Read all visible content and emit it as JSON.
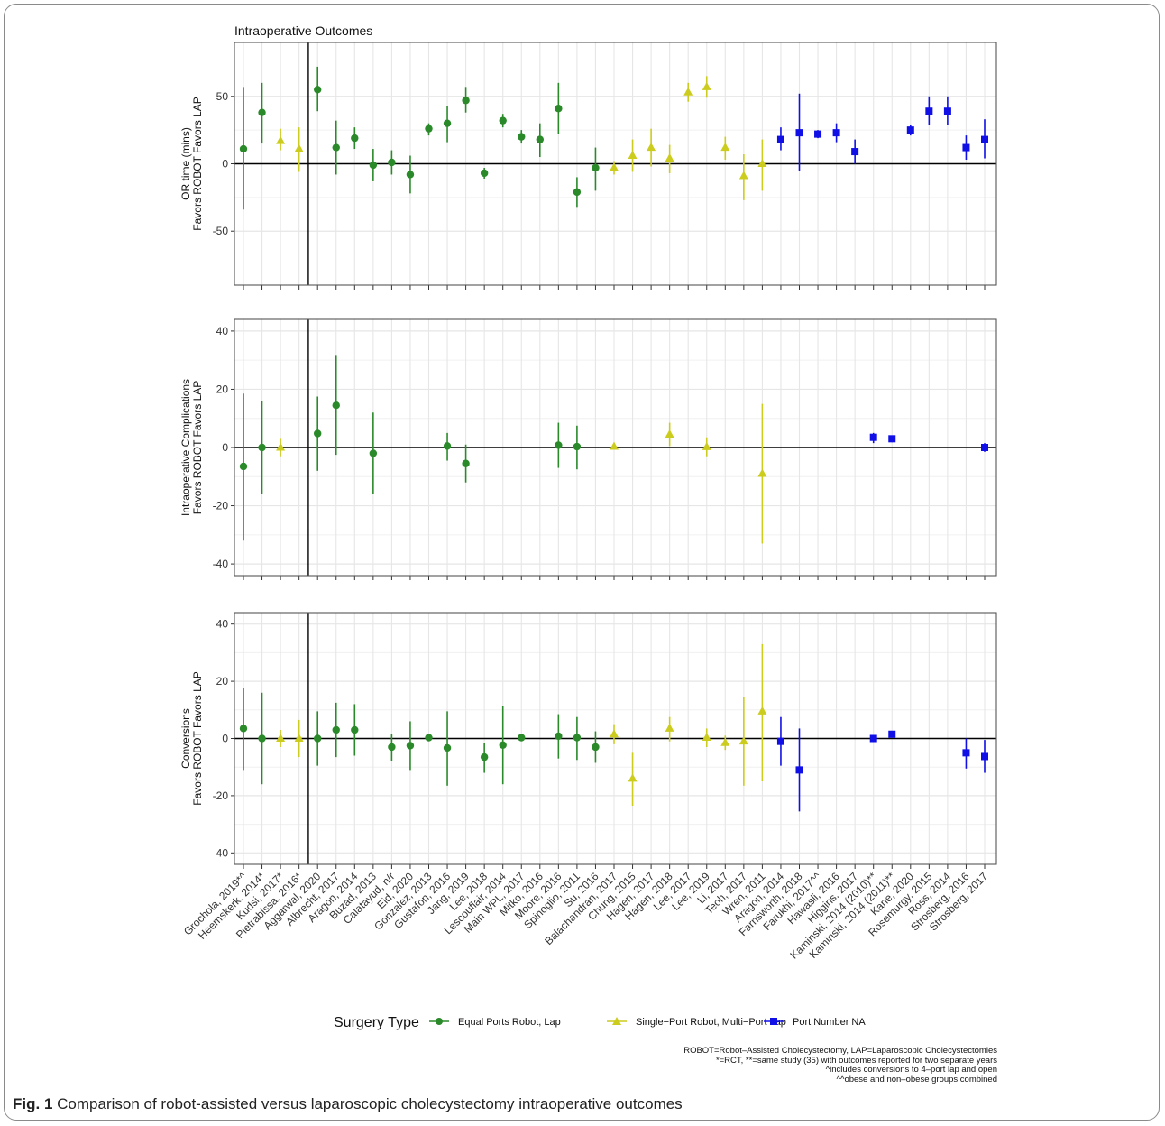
{
  "figure": {
    "caption_label": "Fig. 1",
    "caption_text": "Comparison of robot-assisted versus laparoscopic cholecystectomy intraoperative outcomes",
    "notes": [
      "ROBOT=Robot–Assisted Cholecystectomy, LAP=Laparoscopic Cholecystectomies",
      "*=RCT, **=same study (35) with outcomes reported for two separate years",
      "^includes conversions to 4–port lap and open",
      "^^obese and non–obese groups combined"
    ]
  },
  "colors": {
    "equal": "#2a8a2a",
    "single": "#cccc1e",
    "na": "#1010e6",
    "zero_line": "#000000",
    "grid": "#e6e6e6",
    "panel_border": "#555555"
  },
  "chart_data": {
    "type": "scatter",
    "title": "Intraoperative Outcomes",
    "legend": {
      "title": "Surgery Type",
      "position": "bottom",
      "entries": [
        {
          "label": "Equal Ports Robot, Lap",
          "group": "equal",
          "shape": "circle"
        },
        {
          "label": "Single−Port Robot, Multi−Port Lap",
          "group": "single",
          "shape": "triangle"
        },
        {
          "label": "Port Number NA",
          "group": "na",
          "shape": "square"
        }
      ]
    },
    "studies": [
      "Grochola, 2019*^",
      "Heemskerk, 2014*",
      "Kudsi, 2017*",
      "Pietrabissa, 2016*",
      "Aggarwal, 2020",
      "Albrecht, 2017",
      "Aragon, 2014",
      "Buzad, 2013",
      "Calatayud, n/r",
      "Eid, 2020",
      "Gonzalez, 2013",
      "Gustafon, 2016",
      "Jang, 2019",
      "Lee, 2018",
      "Lescouflair, 2014",
      "Main WPL, 2017",
      "Mitko, 2016",
      "Moore, 2016",
      "Spinoglio, 2011",
      "Su, 2016",
      "Balachandran, 2017",
      "Chung, 2015",
      "Hagen, 2017",
      "Hagen, 2018",
      "Lee, 2017",
      "Lee, 2019",
      "Li, 2017",
      "Teoh, 2017",
      "Wren, 2011",
      "Aragon, 2014",
      "Farnsworth, 2018",
      "Farukhi, 2017^^",
      "Hawasli, 2016",
      "Higgins, 2017",
      "Kaminski, 2014 (2010)**",
      "Kaminski, 2014 (2011)**",
      "Kane, 2020",
      "Rosemurgy, 2015",
      "Ross, 2014",
      "Strosberg, 2016",
      "Strosberg, 2017"
    ],
    "groups": [
      "equal",
      "equal",
      "single",
      "single",
      "equal",
      "equal",
      "equal",
      "equal",
      "equal",
      "equal",
      "equal",
      "equal",
      "equal",
      "equal",
      "equal",
      "equal",
      "equal",
      "equal",
      "equal",
      "equal",
      "single",
      "single",
      "single",
      "single",
      "single",
      "single",
      "single",
      "single",
      "single",
      "na",
      "na",
      "na",
      "na",
      "na",
      "na",
      "na",
      "na",
      "na",
      "na",
      "na",
      "na"
    ],
    "rct_divider_after": "Pietrabissa, 2016*",
    "panels": [
      {
        "ylabel_line1": "OR time (mins)",
        "ylabel_line2": "Favors ROBOT   Favors LAP",
        "ylim": [
          -90,
          90
        ],
        "yticks": [
          -50,
          0,
          50
        ],
        "points": [
          {
            "i": 0,
            "est": 11,
            "lo": -34,
            "hi": 57
          },
          {
            "i": 1,
            "est": 38,
            "lo": 15,
            "hi": 60
          },
          {
            "i": 2,
            "est": 17,
            "lo": 10,
            "hi": 26
          },
          {
            "i": 3,
            "est": 11,
            "lo": -6,
            "hi": 27
          },
          {
            "i": 4,
            "est": 55,
            "lo": 39,
            "hi": 72
          },
          {
            "i": 5,
            "est": 12,
            "lo": -8,
            "hi": 32
          },
          {
            "i": 6,
            "est": 19,
            "lo": 11,
            "hi": 27
          },
          {
            "i": 7,
            "est": -1,
            "lo": -13,
            "hi": 11
          },
          {
            "i": 8,
            "est": 1,
            "lo": -8,
            "hi": 10
          },
          {
            "i": 9,
            "est": -8,
            "lo": -22,
            "hi": 6
          },
          {
            "i": 10,
            "est": 26,
            "lo": 21,
            "hi": 30
          },
          {
            "i": 11,
            "est": 30,
            "lo": 16,
            "hi": 43
          },
          {
            "i": 12,
            "est": 47,
            "lo": 38,
            "hi": 57
          },
          {
            "i": 13,
            "est": -7,
            "lo": -11,
            "hi": -3
          },
          {
            "i": 14,
            "est": 32,
            "lo": 27,
            "hi": 37
          },
          {
            "i": 15,
            "est": 20,
            "lo": 15,
            "hi": 25
          },
          {
            "i": 16,
            "est": 18,
            "lo": 5,
            "hi": 30
          },
          {
            "i": 17,
            "est": 41,
            "lo": 22,
            "hi": 60
          },
          {
            "i": 18,
            "est": -21,
            "lo": -32,
            "hi": -10
          },
          {
            "i": 19,
            "est": -3,
            "lo": -20,
            "hi": 12
          },
          {
            "i": 20,
            "est": -3,
            "lo": -8,
            "hi": 2
          },
          {
            "i": 21,
            "est": 6,
            "lo": -6,
            "hi": 18
          },
          {
            "i": 22,
            "est": 12,
            "lo": -2,
            "hi": 26
          },
          {
            "i": 23,
            "est": 4,
            "lo": -7,
            "hi": 14
          },
          {
            "i": 24,
            "est": 53,
            "lo": 46,
            "hi": 60
          },
          {
            "i": 25,
            "est": 57,
            "lo": 49,
            "hi": 65
          },
          {
            "i": 26,
            "est": 12,
            "lo": 3,
            "hi": 20
          },
          {
            "i": 27,
            "est": -9,
            "lo": -27,
            "hi": 7
          },
          {
            "i": 28,
            "est": 0,
            "lo": -20,
            "hi": 18
          },
          {
            "i": 29,
            "est": 18,
            "lo": 10,
            "hi": 27
          },
          {
            "i": 30,
            "est": 23,
            "lo": -5,
            "hi": 52
          },
          {
            "i": 31,
            "est": 22,
            "lo": 19,
            "hi": 25
          },
          {
            "i": 32,
            "est": 23,
            "lo": 16,
            "hi": 30
          },
          {
            "i": 33,
            "est": 9,
            "lo": 0,
            "hi": 18
          },
          {
            "i": 36,
            "est": 25,
            "lo": 21,
            "hi": 29
          },
          {
            "i": 37,
            "est": 39,
            "lo": 29,
            "hi": 50
          },
          {
            "i": 38,
            "est": 39,
            "lo": 29,
            "hi": 50
          },
          {
            "i": 39,
            "est": 12,
            "lo": 3,
            "hi": 21
          },
          {
            "i": 40,
            "est": 18,
            "lo": 4,
            "hi": 33
          }
        ]
      },
      {
        "ylabel_line1": "Intraoperative Complications",
        "ylabel_line2": "Favors ROBOT   Favors LAP",
        "ylim": [
          -44,
          44
        ],
        "yticks": [
          -40,
          -20,
          0,
          20,
          40
        ],
        "points": [
          {
            "i": 0,
            "est": -6.5,
            "lo": -32,
            "hi": 18.5
          },
          {
            "i": 1,
            "est": 0,
            "lo": -16,
            "hi": 16
          },
          {
            "i": 2,
            "est": 0,
            "lo": -3,
            "hi": 3
          },
          {
            "i": 4,
            "est": 4.8,
            "lo": -8,
            "hi": 17.5
          },
          {
            "i": 5,
            "est": 14.5,
            "lo": -2.5,
            "hi": 31.5
          },
          {
            "i": 7,
            "est": -2,
            "lo": -16,
            "hi": 12
          },
          {
            "i": 11,
            "est": 0.5,
            "lo": -4.5,
            "hi": 5
          },
          {
            "i": 12,
            "est": -5.5,
            "lo": -12,
            "hi": 1
          },
          {
            "i": 17,
            "est": 0.8,
            "lo": -7,
            "hi": 8.5
          },
          {
            "i": 18,
            "est": 0.3,
            "lo": -7.5,
            "hi": 7.5
          },
          {
            "i": 20,
            "est": 0.3,
            "lo": -0.5,
            "hi": 1
          },
          {
            "i": 23,
            "est": 4.5,
            "lo": 0.5,
            "hi": 8.5
          },
          {
            "i": 25,
            "est": 0.2,
            "lo": -3,
            "hi": 3.5
          },
          {
            "i": 28,
            "est": -9,
            "lo": -33,
            "hi": 15
          },
          {
            "i": 34,
            "est": 3.5,
            "lo": 1.5,
            "hi": 5
          },
          {
            "i": 35,
            "est": 3,
            "lo": 1.8,
            "hi": 4
          },
          {
            "i": 40,
            "est": 0,
            "lo": -1.5,
            "hi": 1.5
          }
        ]
      },
      {
        "ylabel_line1": "Conversions",
        "ylabel_line2": "Favors ROBOT   Favors LAP",
        "ylim": [
          -44,
          44
        ],
        "yticks": [
          -40,
          -20,
          0,
          20,
          40
        ],
        "points": [
          {
            "i": 0,
            "est": 3.5,
            "lo": -11,
            "hi": 17.5
          },
          {
            "i": 1,
            "est": 0,
            "lo": -16,
            "hi": 16
          },
          {
            "i": 2,
            "est": 0,
            "lo": -3,
            "hi": 3
          },
          {
            "i": 3,
            "est": 0,
            "lo": -6.5,
            "hi": 6.5
          },
          {
            "i": 4,
            "est": 0,
            "lo": -9.5,
            "hi": 9.5
          },
          {
            "i": 5,
            "est": 3,
            "lo": -6.5,
            "hi": 12.5
          },
          {
            "i": 6,
            "est": 3,
            "lo": -6,
            "hi": 12
          },
          {
            "i": 8,
            "est": -3,
            "lo": -8,
            "hi": 1.5
          },
          {
            "i": 9,
            "est": -2.5,
            "lo": -11,
            "hi": 6
          },
          {
            "i": 10,
            "est": 0.3,
            "lo": -0.5,
            "hi": 1
          },
          {
            "i": 11,
            "est": -3.3,
            "lo": -16.5,
            "hi": 9.5
          },
          {
            "i": 13,
            "est": -6.5,
            "lo": -12,
            "hi": -1.5
          },
          {
            "i": 14,
            "est": -2.3,
            "lo": -16,
            "hi": 11.5
          },
          {
            "i": 15,
            "est": 0.3,
            "lo": -0.5,
            "hi": 1
          },
          {
            "i": 17,
            "est": 0.8,
            "lo": -7,
            "hi": 8.5
          },
          {
            "i": 18,
            "est": 0.3,
            "lo": -7.5,
            "hi": 7.5
          },
          {
            "i": 19,
            "est": -3,
            "lo": -8.5,
            "hi": 2.5
          },
          {
            "i": 20,
            "est": 1.5,
            "lo": -2,
            "hi": 5
          },
          {
            "i": 21,
            "est": -14,
            "lo": -23.5,
            "hi": -5
          },
          {
            "i": 23,
            "est": 3.5,
            "lo": -1,
            "hi": 7.5
          },
          {
            "i": 25,
            "est": 0.3,
            "lo": -3,
            "hi": 3.5
          },
          {
            "i": 26,
            "est": -1.5,
            "lo": -4,
            "hi": 1
          },
          {
            "i": 27,
            "est": -1,
            "lo": -16.5,
            "hi": 14.5
          },
          {
            "i": 28,
            "est": 9.5,
            "lo": -15,
            "hi": 33
          },
          {
            "i": 29,
            "est": -1,
            "lo": -9.5,
            "hi": 7.5
          },
          {
            "i": 30,
            "est": -11,
            "lo": -25.5,
            "hi": 3.5
          },
          {
            "i": 34,
            "est": 0,
            "lo": -0.8,
            "hi": 0.8
          },
          {
            "i": 35,
            "est": 1.5,
            "lo": 0.3,
            "hi": 2.5
          },
          {
            "i": 39,
            "est": -5,
            "lo": -10.5,
            "hi": 0
          },
          {
            "i": 40,
            "est": -6.3,
            "lo": -12,
            "hi": -0.5
          }
        ]
      }
    ]
  }
}
